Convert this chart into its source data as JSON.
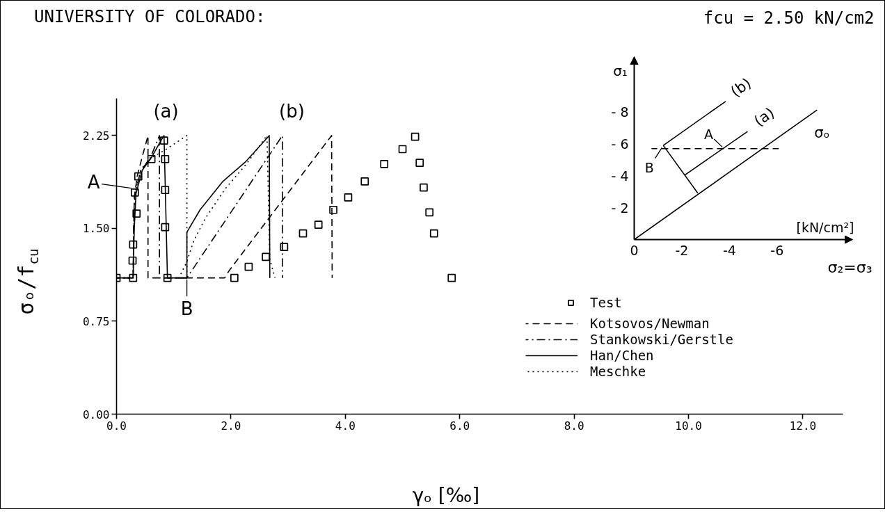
{
  "chart_data": [
    {
      "type": "line",
      "title": "UNIVERSITY OF COLORADO:",
      "subtitle": "fcu = 2.50 kN/cm2",
      "xlabel": "γₒ [‰]",
      "ylabel": "σₒ/f$_{cu}$",
      "xlim": [
        0,
        12.7
      ],
      "ylim": [
        0,
        2.55
      ],
      "xticks": [
        {
          "value": 0,
          "label": "0.0"
        },
        {
          "value": 2,
          "label": "2.0"
        },
        {
          "value": 4,
          "label": "4.0"
        },
        {
          "value": 6,
          "label": "6.0"
        },
        {
          "value": 8,
          "label": "8.0"
        },
        {
          "value": 10,
          "label": "10.0"
        },
        {
          "value": 12,
          "label": "12.0"
        }
      ],
      "yticks": [
        {
          "value": 0,
          "label": "0.00"
        },
        {
          "value": 0.75,
          "label": "0.75"
        },
        {
          "value": 1.5,
          "label": "1.50"
        },
        {
          "value": 2.25,
          "label": "2.25"
        }
      ],
      "legend": "bottom right",
      "annotations": [
        {
          "text": "A",
          "x": 0.3,
          "y": 1.82
        },
        {
          "text": "B",
          "x": 1.23,
          "y": 1.1
        },
        "(a)",
        "(b)"
      ],
      "series": [
        {
          "name": "Test",
          "type": "scatter",
          "marker": "square",
          "color": "#000000",
          "x": [
            0.0,
            0.29,
            0.28,
            0.29,
            0.35,
            0.32,
            0.38,
            0.61,
            0.83,
            0.85,
            0.85,
            0.85,
            0.89,
            2.06,
            2.31,
            2.61,
            2.93,
            3.26,
            3.53,
            3.79,
            4.05,
            4.34,
            4.68,
            5.0,
            5.22,
            5.3,
            5.37,
            5.47,
            5.55,
            5.86
          ],
          "values": [
            1.1,
            1.1,
            1.24,
            1.37,
            1.62,
            1.79,
            1.92,
            2.06,
            2.21,
            2.06,
            1.81,
            1.51,
            1.1,
            1.1,
            1.19,
            1.27,
            1.35,
            1.46,
            1.53,
            1.65,
            1.75,
            1.88,
            2.02,
            2.14,
            2.24,
            2.03,
            1.83,
            1.63,
            1.46,
            1.1
          ]
        },
        {
          "name": "Kotsovos/Newman",
          "line_style": "dashed",
          "color": "#000000",
          "x": [
            0,
            0.29,
            0.3,
            0.31,
            0.36,
            0.45,
            0.55,
            0.55,
            1.89,
            1.97,
            3.76,
            3.77
          ],
          "values": [
            1.1,
            1.1,
            1.5,
            1.75,
            1.92,
            2.08,
            2.25,
            1.1,
            1.1,
            1.16,
            2.25,
            1.1
          ]
        },
        {
          "name": "Stankowski/Gerstle",
          "line_style": "dashdot",
          "color": "#000000",
          "x": [
            0,
            0.29,
            0.3,
            0.32,
            0.42,
            0.6,
            0.75,
            0.75,
            1.23,
            2.9,
            2.9
          ],
          "values": [
            1.1,
            1.1,
            1.5,
            1.78,
            1.96,
            2.08,
            2.25,
            1.1,
            1.1,
            2.25,
            1.1
          ]
        },
        {
          "name": "Han/Chen",
          "line_style": "solid",
          "color": "#000000",
          "x": [
            0,
            0.29,
            0.31,
            0.34,
            0.45,
            0.62,
            0.79,
            0.83,
            0.89,
            1.23,
            1.23,
            1.46,
            1.86,
            2.26,
            2.67,
            2.68
          ],
          "values": [
            1.1,
            1.1,
            1.5,
            1.78,
            1.97,
            2.08,
            2.22,
            2.25,
            1.1,
            1.1,
            1.47,
            1.65,
            1.88,
            2.04,
            2.25,
            1.1
          ]
        },
        {
          "name": "Meschke",
          "line_style": "dotted",
          "color": "#000000",
          "x": [
            0,
            0.29,
            0.3,
            0.33,
            0.43,
            0.61,
            0.87,
            1.23,
            1.23,
            1.09,
            1.22,
            1.35,
            1.55,
            1.9,
            2.27,
            2.63,
            2.68,
            2.77
          ],
          "values": [
            1.1,
            1.1,
            1.5,
            1.8,
            1.98,
            2.07,
            2.14,
            2.25,
            1.1,
            1.1,
            1.22,
            1.4,
            1.58,
            1.82,
            2.02,
            2.25,
            1.25,
            1.1
          ]
        }
      ]
    },
    {
      "type": "line",
      "xlabel": "σ₂=σ₃",
      "ylabel": "σ₁",
      "xlim": [
        0,
        -9
      ],
      "ylim": [
        0,
        -11.2
      ],
      "xticks": [
        0,
        -2,
        -4,
        -6
      ],
      "yticks": [
        {
          "value": -2,
          "label": "- 2"
        },
        {
          "value": -4,
          "label": "- 4"
        },
        {
          "value": -6,
          "label": "- 6"
        },
        {
          "value": -8,
          "label": "- 8"
        }
      ],
      "annotations": [
        "[kN/cm²]",
        {
          "text": "A",
          "x": -3.77,
          "y": -5.7
        },
        {
          "text": "B",
          "x": -1.22,
          "y": -5.9
        }
      ],
      "series": [
        {
          "name": "σₒ",
          "color": "#000000",
          "x": [
            0,
            -7.68
          ],
          "values": [
            0,
            -8.12
          ]
        },
        {
          "color": "#000000",
          "x": [
            -2.67,
            -1.22
          ],
          "values": [
            -2.91,
            -5.9
          ]
        },
        {
          "name": "(a)",
          "color": "#000000",
          "x": [
            -2.12,
            -4.76
          ],
          "values": [
            -4.04,
            -6.77
          ]
        },
        {
          "name": "(b)",
          "color": "#000000",
          "x": [
            -1.22,
            -3.84
          ],
          "values": [
            -5.9,
            -8.66
          ]
        },
        {
          "color": "#000000",
          "line_style": "dashed",
          "x": [
            -0.73,
            -6.07
          ],
          "values": [
            -5.7,
            -5.7
          ]
        }
      ]
    }
  ]
}
